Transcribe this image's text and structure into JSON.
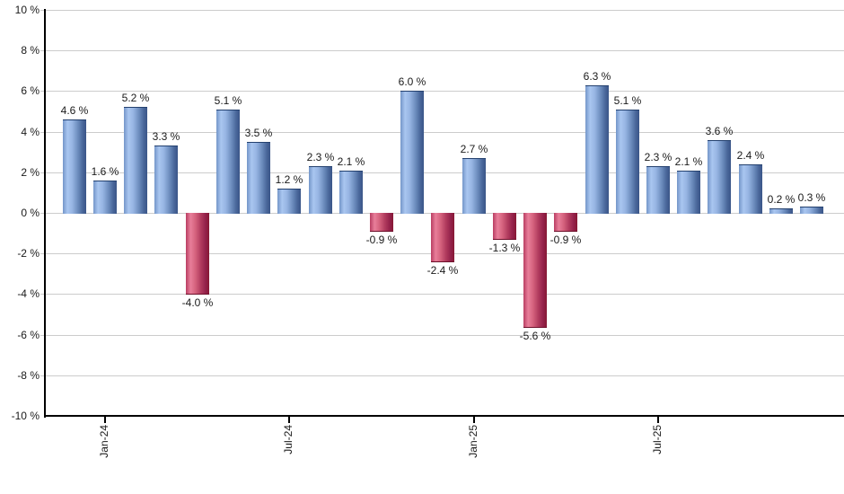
{
  "chart_data": {
    "type": "bar",
    "title": "",
    "xlabel": "",
    "ylabel": "",
    "ylim": [
      -10,
      10
    ],
    "grid": true,
    "legend": "none",
    "values": [
      4.6,
      1.6,
      5.2,
      3.3,
      -4.0,
      5.1,
      3.5,
      1.2,
      2.3,
      2.1,
      -0.9,
      6.0,
      -2.4,
      2.7,
      -1.3,
      -5.6,
      -0.9,
      6.3,
      5.1,
      2.3,
      2.1,
      3.6,
      2.4,
      0.2,
      0.3
    ],
    "bar_labels": [
      "4.6 %",
      "1.6 %",
      "5.2 %",
      "3.3 %",
      "-4.0 %",
      "5.1 %",
      "3.5 %",
      "1.2 %",
      "2.3 %",
      "2.1 %",
      "-0.9 %",
      "6.0 %",
      "-2.4 %",
      "2.7 %",
      "-1.3 %",
      "-5.6 %",
      "-0.9 %",
      "6.3 %",
      "5.1 %",
      "2.3 %",
      "2.1 %",
      "3.6 %",
      "2.4 %",
      "0.2 %",
      "0.3 %"
    ],
    "x_tick_labels": [
      "Jan-24",
      "Jul-24",
      "Jan-25",
      "Jul-25"
    ],
    "x_tick_bar_indices": [
      1,
      7,
      13,
      19
    ],
    "y_tick_values": [
      10,
      8,
      6,
      4,
      2,
      0,
      -2,
      -4,
      -6,
      -8,
      -10
    ],
    "y_tick_labels": [
      "10 %",
      "8 %",
      "6 %",
      "4 %",
      "2 %",
      "0 %",
      "-2 %",
      "-4 %",
      "-6 %",
      "-8 %",
      "-10 %"
    ],
    "colors": {
      "positive_light": "#a9c6f0",
      "positive_main": "#7496c9",
      "positive_dark": "#3a5588",
      "negative_light": "#e87e9a",
      "negative_main": "#b93e62",
      "negative_dark": "#871834",
      "gridline": "#cccccc",
      "axis": "#000000",
      "label_text": "#1a1a1a",
      "background": "#ffffff"
    }
  }
}
